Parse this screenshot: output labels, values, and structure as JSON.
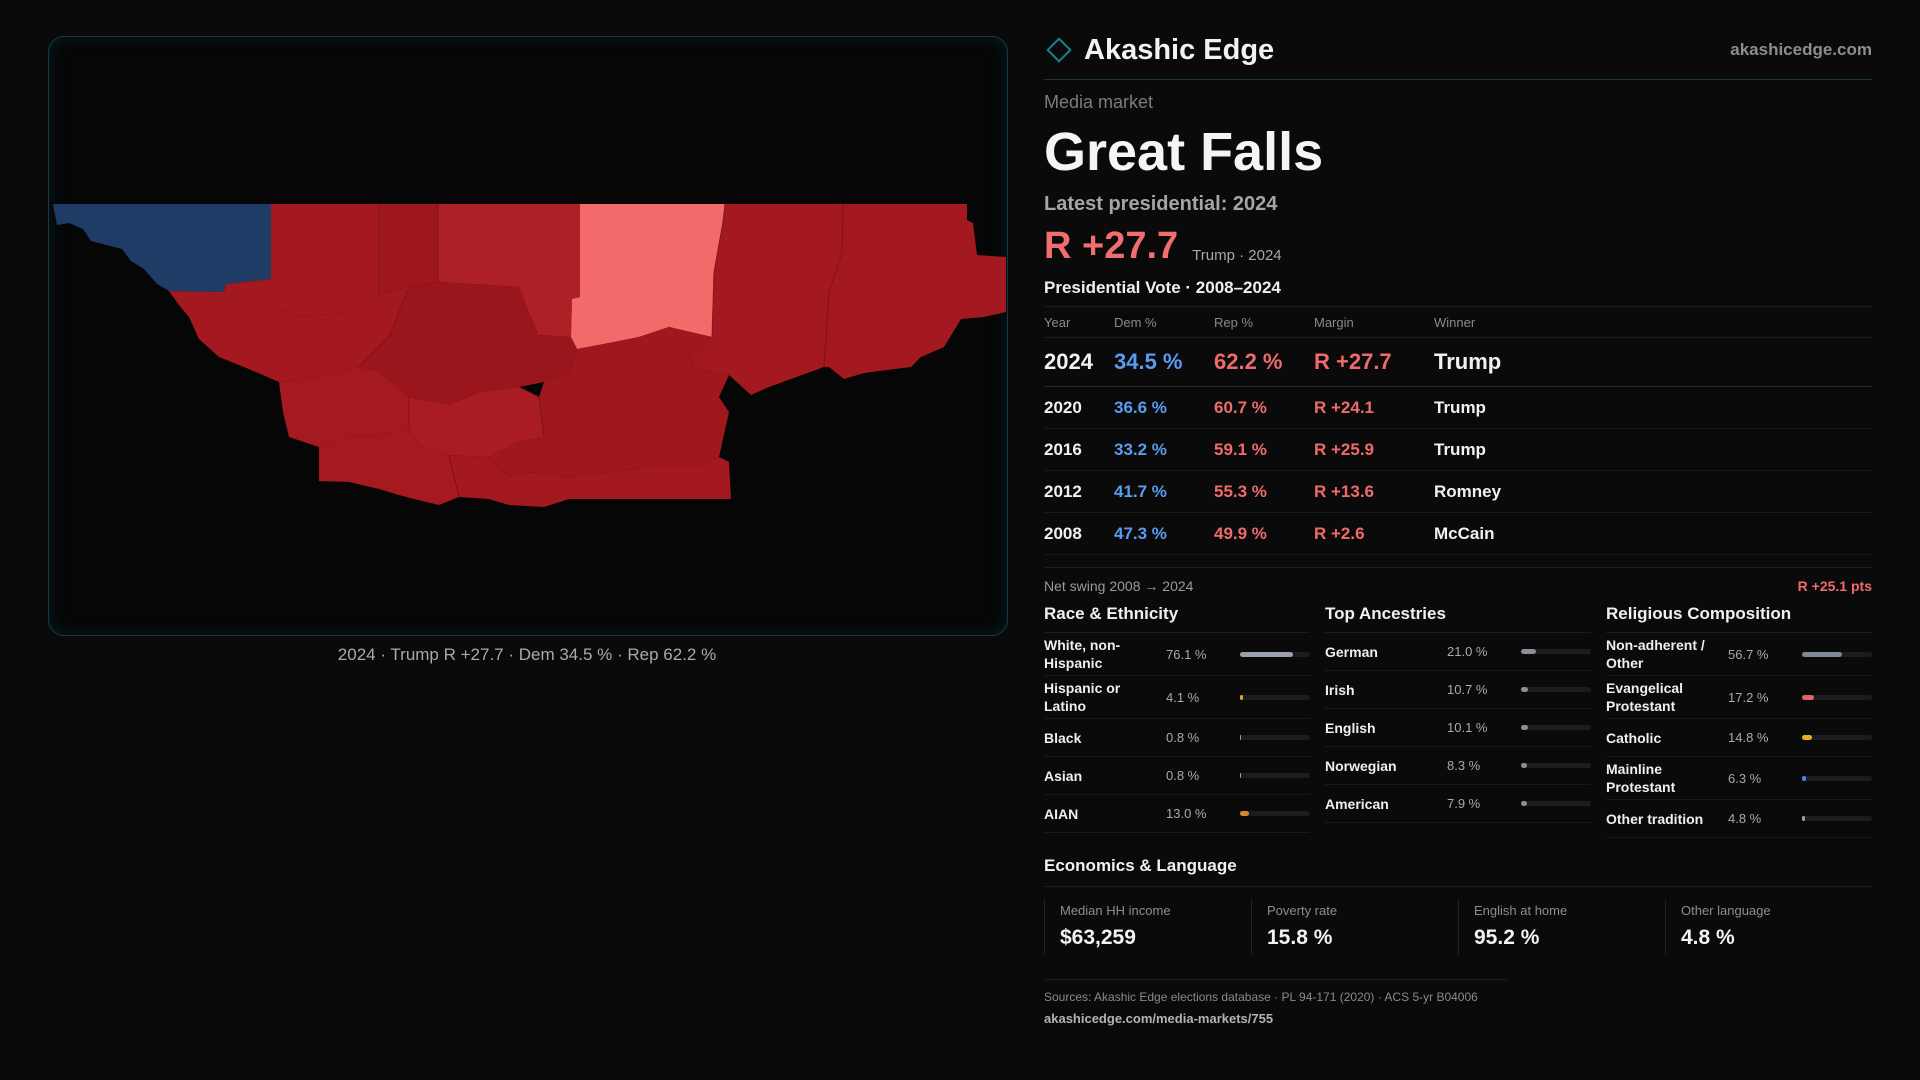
{
  "brand": {
    "name": "Akashic Edge",
    "url": "akashicedge.com"
  },
  "market": {
    "kicker": "Media market",
    "name": "Great Falls",
    "latest_label": "Latest presidential: 2024",
    "margin": "R +27.7",
    "margin_sub": "Trump · 2024"
  },
  "map": {
    "caption": "2024 · Trump R +27.7 · Dem 34.5 % · Rep 62.2 %"
  },
  "vote_table": {
    "title": "Presidential Vote · 2008–2024",
    "headers": [
      "Year",
      "Dem %",
      "Rep %",
      "Margin",
      "Winner"
    ],
    "rows": [
      {
        "year": "2024",
        "dem": "34.5 %",
        "rep": "62.2 %",
        "margin": "R +27.7",
        "winner": "Trump"
      },
      {
        "year": "2020",
        "dem": "36.6 %",
        "rep": "60.7 %",
        "margin": "R +24.1",
        "winner": "Trump"
      },
      {
        "year": "2016",
        "dem": "33.2 %",
        "rep": "59.1 %",
        "margin": "R +25.9",
        "winner": "Trump"
      },
      {
        "year": "2012",
        "dem": "41.7 %",
        "rep": "55.3 %",
        "margin": "R +13.6",
        "winner": "Romney"
      },
      {
        "year": "2008",
        "dem": "47.3 %",
        "rep": "49.9 %",
        "margin": "R +2.6",
        "winner": "McCain"
      }
    ]
  },
  "swing": {
    "label": "Net swing 2008 → 2024",
    "value": "R +25.1 pts"
  },
  "race": {
    "title": "Race & Ethnicity",
    "rows": [
      {
        "name": "White, non-Hispanic",
        "pct": "76.1 %",
        "value": 76.1,
        "color": "#9aa0ab"
      },
      {
        "name": "Hispanic or Latino",
        "pct": "4.1 %",
        "value": 4.1,
        "color": "#e0a526"
      },
      {
        "name": "Black",
        "pct": "0.8 %",
        "value": 0.8,
        "color": "#9aa0ab"
      },
      {
        "name": "Asian",
        "pct": "0.8 %",
        "value": 0.8,
        "color": "#9aa0ab"
      },
      {
        "name": "AIAN",
        "pct": "13.0 %",
        "value": 13.0,
        "color": "#d9892a"
      }
    ]
  },
  "ancestry": {
    "title": "Top Ancestries",
    "rows": [
      {
        "name": "German",
        "pct": "21.0 %",
        "value": 21.0,
        "color": "#8a8f98"
      },
      {
        "name": "Irish",
        "pct": "10.7 %",
        "value": 10.7,
        "color": "#8a8f98"
      },
      {
        "name": "English",
        "pct": "10.1 %",
        "value": 10.1,
        "color": "#8a8f98"
      },
      {
        "name": "Norwegian",
        "pct": "8.3 %",
        "value": 8.3,
        "color": "#8a8f98"
      },
      {
        "name": "American",
        "pct": "7.9 %",
        "value": 7.9,
        "color": "#8a8f98"
      }
    ]
  },
  "religion": {
    "title": "Religious Composition",
    "rows": [
      {
        "name": "Non-adherent / Other",
        "pct": "56.7 %",
        "value": 56.7,
        "color": "#7f8694"
      },
      {
        "name": "Evangelical Protestant",
        "pct": "17.2 %",
        "value": 17.2,
        "color": "#e8606a"
      },
      {
        "name": "Catholic",
        "pct": "14.8 %",
        "value": 14.8,
        "color": "#e3b02a"
      },
      {
        "name": "Mainline Protestant",
        "pct": "6.3 %",
        "value": 6.3,
        "color": "#4a87e0"
      },
      {
        "name": "Other tradition",
        "pct": "4.8 %",
        "value": 4.8,
        "color": "#9aa0ab"
      }
    ]
  },
  "economics": {
    "title": "Economics & Language",
    "cells": [
      {
        "label": "Median HH income",
        "value": "$63,259"
      },
      {
        "label": "Poverty rate",
        "value": "15.8 %"
      },
      {
        "label": "English at home",
        "value": "95.2 %"
      },
      {
        "label": "Other language",
        "value": "4.8 %"
      }
    ]
  },
  "sources": {
    "line": "Sources: Akashic Edge elections database · PL 94-171 (2020) · ACS 5-yr B04006",
    "link": "akashicedge.com/media-markets/755"
  },
  "colors": {
    "dem_county": "#1f3c66",
    "rep_county": "#a3191f",
    "rep_county_alt": "#ad2026",
    "rep_light": "#f26a6a"
  }
}
